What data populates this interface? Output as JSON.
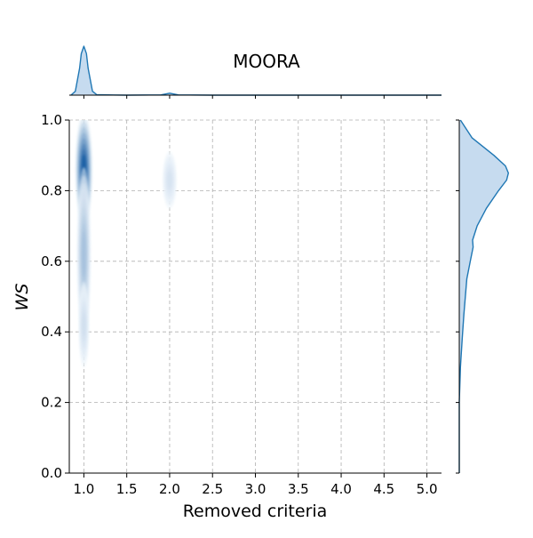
{
  "chart_data": {
    "type": "kde-joint",
    "title": "MOORA",
    "xlabel": "Removed criteria",
    "ylabel": "WS",
    "xlim": [
      0.83,
      5.17
    ],
    "ylim": [
      0.0,
      1.0
    ],
    "xticks": [
      "1.0",
      "1.5",
      "2.0",
      "2.5",
      "3.0",
      "3.5",
      "4.0",
      "4.5",
      "5.0"
    ],
    "yticks": [
      "0.0",
      "0.2",
      "0.4",
      "0.6",
      "0.8",
      "1.0"
    ],
    "grid": true,
    "colors": {
      "line": "#1f77b4",
      "fill": "#c6dbef",
      "contour_dark": "#08519c",
      "contour_light": "#eff5fb"
    },
    "density_clusters": [
      {
        "x": 1.0,
        "y_center": 0.86,
        "x_spread": 0.05,
        "y_spread": 0.08,
        "weight": 1.0
      },
      {
        "x": 1.0,
        "y_center": 0.62,
        "x_spread": 0.04,
        "y_spread": 0.12,
        "weight": 0.35
      },
      {
        "x": 1.0,
        "y_center": 0.42,
        "x_spread": 0.03,
        "y_spread": 0.06,
        "weight": 0.15
      },
      {
        "x": 2.0,
        "y_center": 0.83,
        "x_spread": 0.04,
        "y_spread": 0.04,
        "weight": 0.12
      }
    ],
    "x_marginal": {
      "x": [
        0.85,
        0.9,
        0.95,
        0.97,
        1.0,
        1.03,
        1.05,
        1.1,
        1.15,
        1.5,
        1.9,
        2.0,
        2.1,
        2.5,
        3.0,
        4.0,
        5.17
      ],
      "density": [
        0.0,
        0.08,
        0.55,
        0.85,
        1.0,
        0.85,
        0.55,
        0.08,
        0.01,
        0.0,
        0.005,
        0.04,
        0.005,
        0.0,
        0.0,
        0.0,
        0.0
      ]
    },
    "y_marginal": {
      "y": [
        0.0,
        0.2,
        0.3,
        0.38,
        0.45,
        0.55,
        0.6,
        0.64,
        0.66,
        0.7,
        0.75,
        0.8,
        0.83,
        0.85,
        0.87,
        0.9,
        0.95,
        1.0
      ],
      "density": [
        0.0,
        0.0,
        0.02,
        0.05,
        0.08,
        0.13,
        0.19,
        0.24,
        0.23,
        0.31,
        0.47,
        0.68,
        0.82,
        0.85,
        0.8,
        0.6,
        0.22,
        0.02
      ]
    }
  }
}
